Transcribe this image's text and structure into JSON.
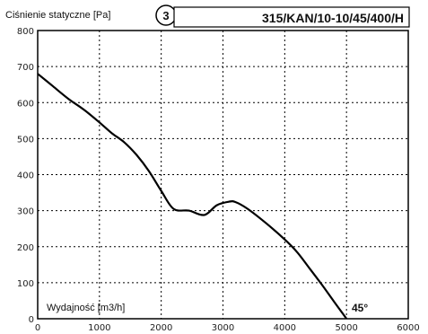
{
  "chart_data": {
    "type": "line",
    "title": "315/KAN/10-10/45/400/H",
    "badge": "3",
    "ylabel": "Ciśnienie statyczne [Pa]",
    "xlabel": "Wydajność [m3/h]",
    "xlim": [
      0,
      6000
    ],
    "ylim": [
      0,
      800
    ],
    "xticks": [
      0,
      1000,
      2000,
      3000,
      4000,
      5000,
      6000
    ],
    "yticks": [
      0,
      100,
      200,
      300,
      400,
      500,
      600,
      700,
      800
    ],
    "grid": true,
    "series": [
      {
        "name": "45°",
        "x": [
          0,
          250,
          500,
          750,
          1000,
          1200,
          1400,
          1600,
          1800,
          2000,
          2200,
          2450,
          2700,
          2900,
          3100,
          3200,
          3400,
          3700,
          4000,
          4200,
          4400,
          4600,
          4800,
          5000
        ],
        "y": [
          680,
          645,
          610,
          580,
          545,
          515,
          490,
          455,
          410,
          355,
          305,
          300,
          288,
          315,
          325,
          324,
          305,
          265,
          220,
          185,
          140,
          95,
          47,
          0
        ]
      }
    ],
    "annotations": [
      "45°"
    ]
  }
}
